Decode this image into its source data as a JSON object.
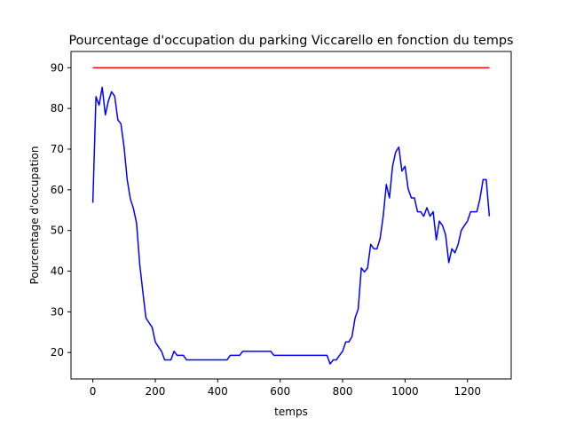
{
  "chart_data": {
    "type": "line",
    "title": "Pourcentage d'occupation du parking Viccarello en fonction du temps",
    "xlabel": "temps",
    "ylabel": "Pourcentage d'occupation",
    "xlim": [
      -70,
      1340
    ],
    "ylim": [
      13.5,
      94
    ],
    "xticks": [
      0,
      200,
      400,
      600,
      800,
      1000,
      1200
    ],
    "yticks": [
      20,
      30,
      40,
      50,
      60,
      70,
      80,
      90
    ],
    "grid": false,
    "series": [
      {
        "color": "#0000ff",
        "x": [
          0,
          10,
          20,
          30,
          40,
          50,
          60,
          70,
          80,
          90,
          100,
          110,
          120,
          130,
          140,
          150,
          160,
          170,
          180,
          190,
          200,
          210,
          220,
          230,
          240,
          250,
          260,
          270,
          280,
          290,
          300,
          310,
          320,
          330,
          340,
          350,
          360,
          370,
          380,
          390,
          400,
          410,
          420,
          430,
          440,
          450,
          460,
          470,
          480,
          490,
          500,
          510,
          520,
          530,
          540,
          550,
          560,
          570,
          580,
          590,
          600,
          610,
          620,
          630,
          640,
          650,
          660,
          670,
          680,
          690,
          700,
          710,
          720,
          730,
          740,
          750,
          760,
          770,
          780,
          790,
          800,
          810,
          820,
          830,
          840,
          850,
          860,
          870,
          880,
          890,
          900,
          910,
          920,
          930,
          940,
          950,
          960,
          970,
          980,
          990,
          1000,
          1010,
          1020,
          1030,
          1040,
          1050,
          1060,
          1070,
          1080,
          1090,
          1100,
          1110,
          1120,
          1130,
          1140,
          1150,
          1160,
          1170,
          1180,
          1190,
          1200,
          1210,
          1220,
          1230,
          1240,
          1250,
          1260,
          1270
        ],
        "y": [
          56.8,
          82.9,
          80.8,
          85.2,
          78.4,
          81.9,
          84.1,
          83.0,
          77.2,
          76.2,
          70.5,
          62.5,
          57.8,
          55.4,
          51.8,
          41.8,
          35.0,
          28.5,
          27.3,
          26.2,
          22.6,
          21.4,
          20.3,
          18.2,
          18.2,
          18.2,
          20.3,
          19.3,
          19.3,
          19.3,
          18.2,
          18.2,
          18.2,
          18.2,
          18.2,
          18.2,
          18.2,
          18.2,
          18.2,
          18.2,
          18.2,
          18.2,
          18.2,
          18.2,
          19.3,
          19.3,
          19.3,
          19.3,
          20.3,
          20.3,
          20.3,
          20.3,
          20.3,
          20.3,
          20.3,
          20.3,
          20.3,
          20.3,
          19.3,
          19.3,
          19.3,
          19.3,
          19.3,
          19.3,
          19.3,
          19.3,
          19.3,
          19.3,
          19.3,
          19.3,
          19.3,
          19.3,
          19.3,
          19.3,
          19.3,
          19.3,
          17.2,
          18.2,
          18.2,
          19.3,
          20.3,
          22.6,
          22.6,
          23.9,
          28.5,
          30.7,
          40.8,
          39.8,
          40.8,
          46.6,
          45.5,
          45.5,
          48.0,
          53.5,
          61.3,
          58.0,
          65.8,
          69.3,
          70.5,
          64.6,
          65.8,
          60.2,
          58.0,
          58.0,
          54.6,
          54.6,
          53.5,
          55.6,
          53.5,
          54.6,
          47.7,
          52.3,
          51.2,
          48.9,
          42.1,
          45.5,
          44.5,
          46.6,
          50.0,
          51.2,
          52.3,
          54.6,
          54.6,
          54.6,
          57.8,
          62.5,
          62.5,
          53.5
        ]
      },
      {
        "color": "#ff0000",
        "x": [
          0,
          1270
        ],
        "y": [
          90,
          90
        ]
      }
    ]
  }
}
